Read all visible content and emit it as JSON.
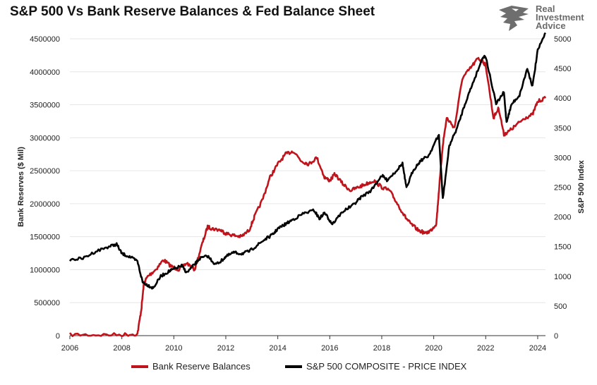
{
  "title": "S&P 500 Vs Bank Reserve Balances & Fed Balance Sheet",
  "logo": {
    "line1": "Real",
    "line2": "Investment",
    "line3": "Advice"
  },
  "colors": {
    "bank": "#c0141c",
    "spx": "#000000",
    "grid": "#e6e6e6",
    "axis": "#222222"
  },
  "chart_data": {
    "type": "line",
    "title": "S&P 500 Vs Bank Reserve Balances & Fed Balance Sheet",
    "xlabel": "",
    "ylabel_left": "Bank Reserves ($ Mil)",
    "ylabel_right": "S&P 500 Index",
    "xlim": [
      2006,
      2024.3
    ],
    "ylim_left": [
      0,
      4500000
    ],
    "ylim_right": [
      0,
      5000
    ],
    "x_ticks": [
      "2006",
      "2008",
      "2010",
      "2012",
      "2014",
      "2016",
      "2018",
      "2020",
      "2022",
      "2024"
    ],
    "y_left_ticks": [
      "0",
      "500000",
      "1000000",
      "1500000",
      "2000000",
      "2500000",
      "3000000",
      "3500000",
      "4000000",
      "4500000"
    ],
    "y_right_ticks": [
      "0",
      "500",
      "1000",
      "1500",
      "2000",
      "2500",
      "3000",
      "3500",
      "4000",
      "4500",
      "5000"
    ],
    "grid": true,
    "legend_position": "bottom",
    "series": [
      {
        "name": "Bank Reserve Balances",
        "axis": "left",
        "x": [
          2006.0,
          2007.0,
          2008.0,
          2008.6,
          2008.75,
          2008.85,
          2009.0,
          2009.3,
          2009.6,
          2009.9,
          2010.2,
          2010.5,
          2010.8,
          2011.1,
          2011.3,
          2011.5,
          2011.8,
          2012.0,
          2012.3,
          2012.6,
          2012.9,
          2013.1,
          2013.4,
          2013.7,
          2014.0,
          2014.3,
          2014.6,
          2014.9,
          2015.2,
          2015.5,
          2015.8,
          2016.0,
          2016.2,
          2016.5,
          2016.8,
          2017.1,
          2017.4,
          2017.7,
          2018.0,
          2018.3,
          2018.6,
          2018.9,
          2019.1,
          2019.4,
          2019.7,
          2019.9,
          2020.1,
          2020.2,
          2020.35,
          2020.5,
          2020.8,
          2021.1,
          2021.4,
          2021.7,
          2021.9,
          2022.0,
          2022.3,
          2022.5,
          2022.7,
          2022.9,
          2023.2,
          2023.5,
          2023.8,
          2024.0,
          2024.3
        ],
        "values": [
          15000,
          12000,
          15000,
          25000,
          400000,
          800000,
          900000,
          1000000,
          1150000,
          1050000,
          1000000,
          1100000,
          1000000,
          1400000,
          1650000,
          1620000,
          1600000,
          1550000,
          1520000,
          1500000,
          1600000,
          1800000,
          2050000,
          2400000,
          2600000,
          2750000,
          2800000,
          2650000,
          2600000,
          2700000,
          2400000,
          2350000,
          2450000,
          2300000,
          2200000,
          2250000,
          2300000,
          2350000,
          2250000,
          2200000,
          2000000,
          1800000,
          1700000,
          1600000,
          1550000,
          1600000,
          1700000,
          2200000,
          2900000,
          3300000,
          3150000,
          3900000,
          4050000,
          4200000,
          4150000,
          4100000,
          3300000,
          3450000,
          3050000,
          3100000,
          3200000,
          3300000,
          3350000,
          3550000,
          3600000
        ]
      },
      {
        "name": "S&P 500 COMPOSITE - PRICE INDEX",
        "axis": "right",
        "x": [
          2006.0,
          2006.5,
          2007.0,
          2007.5,
          2007.8,
          2008.0,
          2008.3,
          2008.6,
          2008.8,
          2009.0,
          2009.2,
          2009.5,
          2009.8,
          2010.0,
          2010.3,
          2010.5,
          2010.8,
          2011.0,
          2011.3,
          2011.6,
          2011.8,
          2012.0,
          2012.3,
          2012.6,
          2012.9,
          2013.2,
          2013.5,
          2013.8,
          2014.0,
          2014.3,
          2014.6,
          2015.0,
          2015.4,
          2015.6,
          2015.8,
          2016.0,
          2016.1,
          2016.5,
          2016.9,
          2017.2,
          2017.6,
          2018.0,
          2018.2,
          2018.5,
          2018.8,
          2018.95,
          2019.2,
          2019.5,
          2019.8,
          2020.1,
          2020.2,
          2020.35,
          2020.6,
          2020.9,
          2021.2,
          2021.5,
          2021.9,
          2022.0,
          2022.4,
          2022.7,
          2022.8,
          2023.0,
          2023.3,
          2023.6,
          2023.8,
          2024.0,
          2024.3
        ],
        "values": [
          1280,
          1300,
          1420,
          1500,
          1540,
          1380,
          1330,
          1250,
          900,
          850,
          800,
          1000,
          1080,
          1120,
          1180,
          1060,
          1200,
          1300,
          1340,
          1200,
          1250,
          1330,
          1400,
          1380,
          1420,
          1520,
          1620,
          1700,
          1800,
          1880,
          1960,
          2060,
          2110,
          1970,
          2070,
          1940,
          1880,
          2090,
          2200,
          2330,
          2450,
          2700,
          2620,
          2750,
          2900,
          2480,
          2780,
          2950,
          3030,
          3300,
          3370,
          2300,
          3200,
          3500,
          3900,
          4250,
          4700,
          4700,
          3900,
          4100,
          3600,
          3900,
          4050,
          4500,
          4200,
          4800,
          5100
        ]
      }
    ]
  },
  "legend": {
    "items": [
      {
        "label": "Bank Reserve Balances"
      },
      {
        "label": "S&P 500 COMPOSITE - PRICE INDEX"
      }
    ]
  }
}
